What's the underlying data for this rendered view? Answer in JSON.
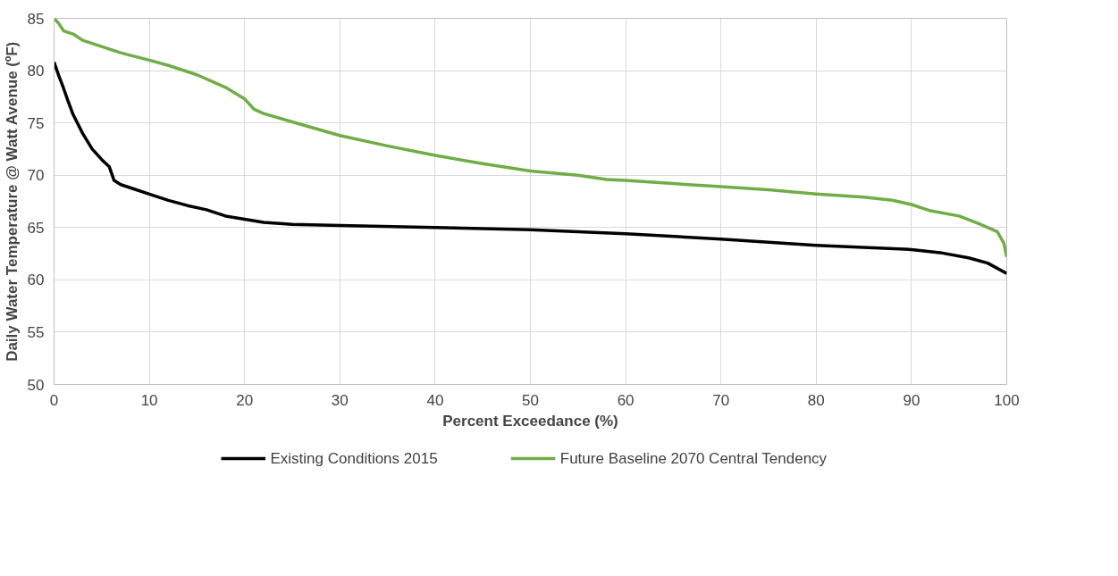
{
  "chart_data": {
    "type": "line",
    "xlabel": "Percent Exceedance (%)",
    "ylabel": "Daily Water Temperature @ Watt Avenue (ºF)",
    "xlim": [
      0,
      100
    ],
    "ylim": [
      50,
      85
    ],
    "xticks": [
      0,
      10,
      20,
      30,
      40,
      50,
      60,
      70,
      80,
      90,
      100
    ],
    "yticks": [
      50,
      55,
      60,
      65,
      70,
      75,
      80,
      85
    ],
    "grid": true,
    "legend": "bottom",
    "line_style": "solid",
    "marker": "none",
    "series": [
      {
        "name": "Existing Conditions 2015",
        "color": "#000000",
        "x": [
          0,
          0.5,
          1,
          1.5,
          2,
          3,
          4,
          5,
          5.8,
          6.3,
          7,
          8,
          10,
          12,
          14,
          16,
          18,
          20,
          22,
          25,
          30,
          40,
          50,
          60,
          70,
          80,
          90,
          93,
          96,
          98,
          100
        ],
        "values": [
          80.8,
          79.5,
          78.3,
          77,
          75.8,
          74,
          72.5,
          71.5,
          70.8,
          69.5,
          69.1,
          68.8,
          68.2,
          67.6,
          67.1,
          66.7,
          66.1,
          65.8,
          65.5,
          65.3,
          65.2,
          65.0,
          64.8,
          64.4,
          63.9,
          63.3,
          62.9,
          62.6,
          62.1,
          61.6,
          60.6
        ]
      },
      {
        "name": "Future Baseline 2070 Central Tendency",
        "color": "#70ad47",
        "x": [
          0,
          0.5,
          1,
          2,
          3,
          5,
          7,
          10,
          12,
          15,
          18,
          20,
          21,
          22,
          25,
          30,
          35,
          40,
          45,
          50,
          55,
          58,
          60,
          65,
          70,
          75,
          80,
          85,
          88,
          90,
          92,
          95,
          97,
          99,
          99.7,
          100
        ],
        "values": [
          85,
          84.5,
          83.8,
          83.5,
          82.9,
          82.3,
          81.7,
          81.0,
          80.5,
          79.6,
          78.4,
          77.3,
          76.3,
          75.9,
          75.1,
          73.8,
          72.8,
          71.9,
          71.1,
          70.4,
          70.0,
          69.6,
          69.5,
          69.2,
          68.9,
          68.6,
          68.2,
          67.9,
          67.6,
          67.2,
          66.6,
          66.1,
          65.4,
          64.6,
          63.5,
          62.2
        ]
      }
    ]
  }
}
